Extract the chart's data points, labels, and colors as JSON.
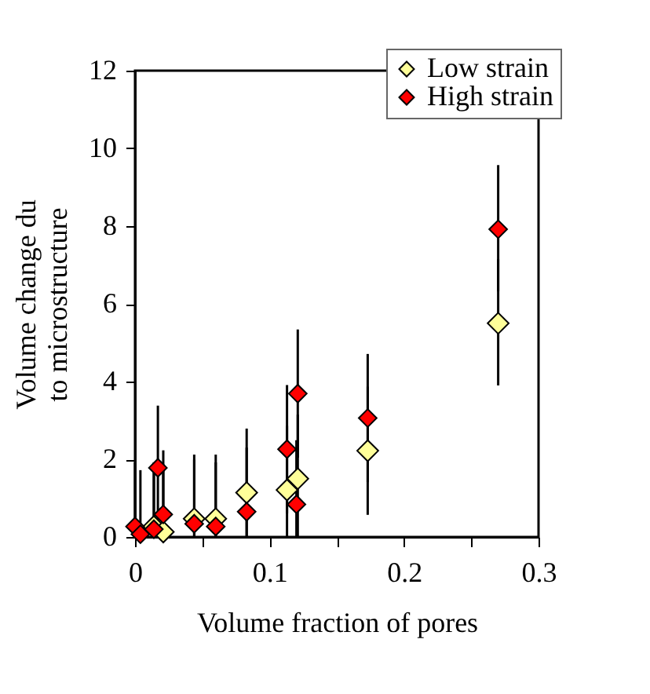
{
  "chart_data": {
    "type": "scatter",
    "xlabel": "Volume fraction of pores",
    "ylabel": "Volume change du\nto microstructure",
    "xlim": [
      0,
      0.3
    ],
    "ylim": [
      0,
      12
    ],
    "xticks": [
      0,
      {
        "value": 0.05,
        "label": null
      },
      0.1,
      {
        "value": 0.15,
        "label": null
      },
      0.2,
      {
        "value": 0.25,
        "label": null
      },
      0.3
    ],
    "yticks": [
      0,
      2,
      4,
      6,
      8,
      10,
      12
    ],
    "marker": "diamond",
    "legend": "top right",
    "grid": false,
    "series": [
      {
        "name": "Low strain",
        "color": "#ffff99",
        "x": [
          0.014,
          0.021,
          0.044,
          0.06,
          0.083,
          0.113,
          0.121,
          0.173,
          0.27
        ],
        "values": [
          0.27,
          0.13,
          0.47,
          0.47,
          1.14,
          1.21,
          1.5,
          2.22,
          5.5
        ],
        "errors": [
          [
            0,
            1.92
          ],
          [
            0,
            1.78
          ],
          [
            0,
            2.12
          ],
          [
            0,
            2.12
          ],
          [
            0,
            2.79
          ],
          [
            0,
            2.86
          ],
          [
            0,
            3.15
          ],
          [
            0.57,
            3.87
          ],
          [
            3.9,
            7.15
          ]
        ]
      },
      {
        "name": "High strain",
        "color": "#ff0000",
        "x": [
          0,
          0.004,
          0.014,
          0.017,
          0.021,
          0.044,
          0.06,
          0.083,
          0.113,
          0.121,
          0.12,
          0.173,
          0.27
        ],
        "values": [
          0.27,
          0.07,
          0.2,
          1.78,
          0.58,
          0.34,
          0.27,
          0.65,
          2.26,
          3.69,
          0.84,
          3.06,
          7.92
        ],
        "errors": [
          [
            0,
            1.92
          ],
          [
            0,
            1.72
          ],
          [
            0,
            1.85
          ],
          [
            0.18,
            3.38
          ],
          [
            0,
            2.23
          ],
          [
            0,
            1.99
          ],
          [
            0,
            1.92
          ],
          [
            0,
            2.3
          ],
          [
            0.61,
            3.91
          ],
          [
            2.04,
            5.34
          ],
          [
            0,
            2.49
          ],
          [
            1.41,
            4.71
          ],
          [
            6.32,
            9.57
          ]
        ]
      }
    ]
  }
}
